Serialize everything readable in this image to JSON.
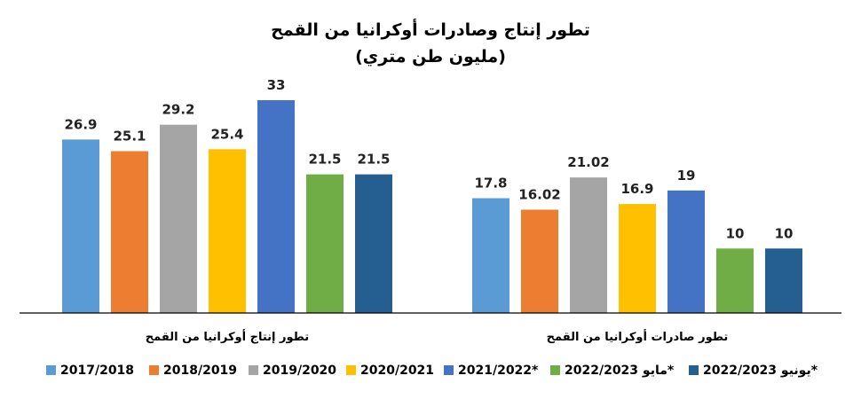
{
  "chart_data": {
    "type": "bar",
    "title": "تطور إنتاج وصادرات أوكرانيا من القمح",
    "subtitle": "(مليون طن متري)",
    "categories": [
      "تطور إنتاج أوكرانيا من القمح",
      "تطور صادرات أوكرانيا من القمح"
    ],
    "series": [
      {
        "name": "2017/2018",
        "color": "#5B9BD5",
        "values": [
          26.9,
          17.8
        ],
        "labels": [
          "26.9",
          "17.8"
        ]
      },
      {
        "name": "2018/2019",
        "color": "#ED7D31",
        "values": [
          25.1,
          16.02
        ],
        "labels": [
          "25.1",
          "16.02"
        ]
      },
      {
        "name": "2019/2020",
        "color": "#A5A5A5",
        "values": [
          29.2,
          21.02
        ],
        "labels": [
          "29.2",
          "21.02"
        ]
      },
      {
        "name": "2020/2021",
        "color": "#FFC000",
        "values": [
          25.4,
          16.9
        ],
        "labels": [
          "25.4",
          "16.9"
        ]
      },
      {
        "name": "2021/2022*",
        "color": "#4472C4",
        "values": [
          33,
          19
        ],
        "labels": [
          "33",
          "19"
        ]
      },
      {
        "name": "مايو 2022/2023*",
        "color": "#70AD47",
        "values": [
          21.5,
          10
        ],
        "labels": [
          "21.5",
          "10"
        ]
      },
      {
        "name": "يونيو 2022/2023*",
        "color": "#255E91",
        "values": [
          21.5,
          10
        ],
        "labels": [
          "21.5",
          "10"
        ]
      }
    ],
    "ylim": [
      0,
      36
    ],
    "legend_position": "bottom",
    "grid": false
  }
}
